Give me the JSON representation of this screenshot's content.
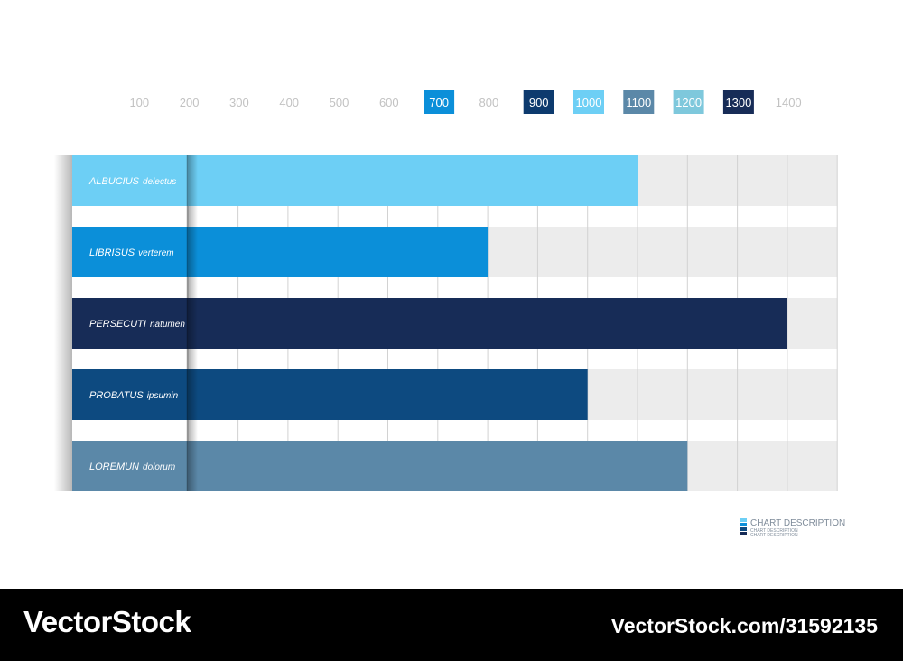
{
  "chart_data": {
    "type": "bar",
    "orientation": "horizontal",
    "x_ticks": [
      100,
      200,
      300,
      400,
      500,
      600,
      700,
      800,
      900,
      1000,
      1100,
      1200,
      1300,
      1400
    ],
    "highlighted_ticks": [
      {
        "value": 700,
        "color": "#0b8fd9"
      },
      {
        "value": 900,
        "color": "#0d3a6e"
      },
      {
        "value": 1000,
        "color": "#6dcff5"
      },
      {
        "value": 1100,
        "color": "#5b88a8"
      },
      {
        "value": 1200,
        "color": "#7ec8dc"
      },
      {
        "value": 1300,
        "color": "#172c57"
      }
    ],
    "xlim": [
      0,
      1400
    ],
    "grid": true,
    "bars": [
      {
        "category_bold": "ALBUCIUS",
        "category_italic": "delectus",
        "value": 1000,
        "color": "#6dcff5"
      },
      {
        "category_bold": "LIBRISUS",
        "category_italic": "verterem",
        "value": 700,
        "color": "#0b8fd9"
      },
      {
        "category_bold": "PERSECUTI",
        "category_italic": "natumen",
        "value": 1300,
        "color": "#172c57"
      },
      {
        "category_bold": "PROBATUS",
        "category_italic": "ipsumin",
        "value": 900,
        "color": "#0d4a80"
      },
      {
        "category_bold": "LOREMUN",
        "category_italic": "dolorum",
        "value": 1100,
        "color": "#5b88a8"
      }
    ],
    "legend": {
      "position": "bottom-right",
      "title": "CHART DESCRIPTION",
      "subtitles": [
        "CHART DESCRIPTION",
        "CHART DESCRIPTION"
      ],
      "swatches": [
        "#6dcff5",
        "#0b8fd9",
        "#0d4a80",
        "#172c57"
      ]
    }
  },
  "watermark": {
    "logo": "VectorStock",
    "url": "VectorStock.com/31592135"
  }
}
